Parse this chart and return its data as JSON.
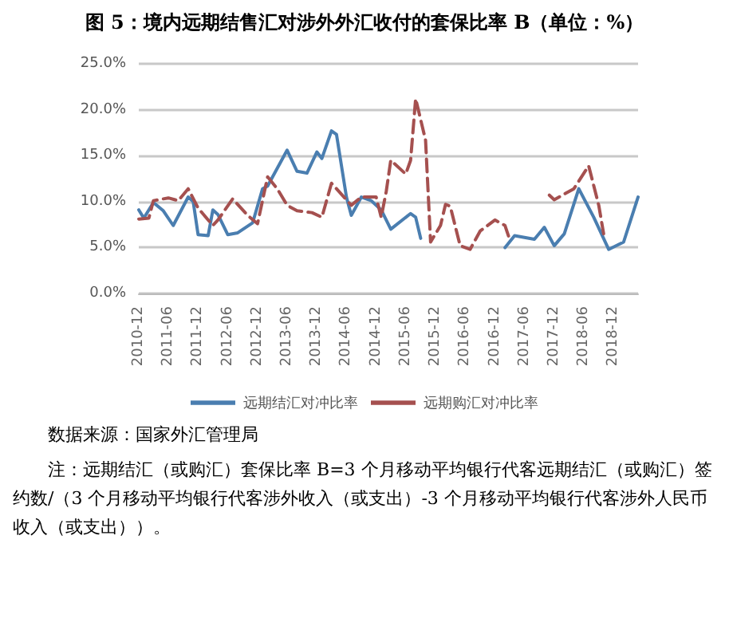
{
  "chart_data": {
    "type": "line",
    "title": "图 5：境内远期结售汇对涉外外汇收付的套保比率 B（单位：%）",
    "xlim": [
      "2010-12",
      "2019-05"
    ],
    "xticks": [
      {
        "value": "2010-12",
        "label": "2010-12"
      },
      {
        "value": "2011-06",
        "label": "2011-06"
      },
      {
        "value": "2011-12",
        "label": "2011-12"
      },
      {
        "value": "2012-06",
        "label": "2012-06"
      },
      {
        "value": "2012-12",
        "label": "2012-12"
      },
      {
        "value": "2013-06",
        "label": "2013-06"
      },
      {
        "value": "2013-12",
        "label": "2013-12"
      },
      {
        "value": "2014-06",
        "label": "2014-06"
      },
      {
        "value": "2014-12",
        "label": "2014-12"
      },
      {
        "value": "2015-06",
        "label": "2015-06"
      },
      {
        "value": "2015-12",
        "label": "2015-12"
      },
      {
        "value": "2016-06",
        "label": "2016-06"
      },
      {
        "value": "2016-12",
        "label": "2016-12"
      },
      {
        "value": "2017-06",
        "label": "2017-06"
      },
      {
        "value": "2017-12",
        "label": "2017-12"
      },
      {
        "value": "2018-06",
        "label": "2018-06"
      },
      {
        "value": "2018-12",
        "label": "2018-12"
      }
    ],
    "ylim": [
      0,
      25
    ],
    "yticks": [
      {
        "value": 0,
        "label": "0.0%"
      },
      {
        "value": 5,
        "label": "5.0%"
      },
      {
        "value": 10,
        "label": "10.0%"
      },
      {
        "value": 15,
        "label": "15.0%"
      },
      {
        "value": 20,
        "label": "20.0%"
      },
      {
        "value": 25,
        "label": "25.0%"
      }
    ],
    "grid": "y",
    "legend": "bottom",
    "marker": "none",
    "series": [
      {
        "name": "远期结汇对冲比率",
        "color": "#4a7eb0",
        "line_style": "solid",
        "x": [
          "2010-12",
          "2011-01",
          "2011-03",
          "2011-05",
          "2011-07",
          "2011-10",
          "2011-11",
          "2011-12",
          "2012-02",
          "2012-03",
          "2012-04",
          "2012-06",
          "2012-08",
          "2012-11",
          "2013-01",
          "2013-02",
          "2013-06",
          "2013-08",
          "2013-10",
          "2013-12",
          "2014-01",
          "2014-03",
          "2014-04",
          "2014-06",
          "2014-07",
          "2014-09",
          "2014-11",
          "2015-01",
          "2015-03",
          "2015-07",
          "2015-08",
          "2015-09",
          "2016-05",
          "2017-02",
          "2017-04",
          "2017-08",
          "2017-10",
          "2017-12",
          "2018-02",
          "2018-05",
          "2018-08",
          "2018-11",
          "2019-02",
          "2019-05"
        ],
        "values": [
          9.1,
          8.2,
          9.9,
          9.0,
          7.4,
          10.5,
          10.0,
          6.4,
          6.3,
          9.1,
          8.6,
          6.4,
          6.6,
          7.7,
          11.4,
          11.7,
          15.6,
          13.3,
          13.1,
          15.4,
          14.7,
          17.7,
          17.3,
          10.5,
          8.5,
          10.5,
          10.1,
          9.1,
          7.0,
          8.7,
          8.3,
          6.0,
          null,
          5.0,
          6.3,
          5.9,
          7.2,
          5.2,
          6.5,
          11.4,
          8.3,
          4.8,
          5.6,
          10.5
        ]
      },
      {
        "name": "远期购汇对冲比率",
        "color": "#a5504f",
        "line_style": "dashed",
        "x": [
          "2010-12",
          "2011-02",
          "2011-03",
          "2011-06",
          "2011-08",
          "2011-10",
          "2011-12",
          "2012-03",
          "2012-04",
          "2012-07",
          "2012-10",
          "2012-12",
          "2013-02",
          "2013-04",
          "2013-06",
          "2013-08",
          "2013-11",
          "2014-01",
          "2014-03",
          "2014-06",
          "2014-07",
          "2014-09",
          "2014-12",
          "2015-01",
          "2015-02",
          "2015-03",
          "2015-06",
          "2015-07",
          "2015-08",
          "2015-10",
          "2015-11",
          "2016-01",
          "2016-02",
          "2016-03",
          "2016-05",
          "2016-07",
          "2016-09",
          "2016-12",
          "2017-02",
          "2017-03",
          "2017-07",
          "2017-11",
          "2017-12",
          "2018-04",
          "2018-07",
          "2018-09",
          "2018-10"
        ],
        "values": [
          8.1,
          8.2,
          10.1,
          10.4,
          10.1,
          11.4,
          9.3,
          7.4,
          8.0,
          10.3,
          8.5,
          7.6,
          12.7,
          11.4,
          9.6,
          9.0,
          8.8,
          8.3,
          12.0,
          10.2,
          9.6,
          10.5,
          10.5,
          8.3,
          11.1,
          14.5,
          13.0,
          14.5,
          21.2,
          16.7,
          5.6,
          7.4,
          9.7,
          9.5,
          5.2,
          4.8,
          6.8,
          8.0,
          7.4,
          5.9,
          null,
          10.7,
          10.2,
          11.4,
          13.9,
          9.6,
          6.5
        ]
      }
    ],
    "annotations": [
      "数据来源：国家外汇管理局",
      "注：远期结汇（或购汇）套保比率 B=3 个月移动平均银行代客远期结汇（或购汇）签约数/（3 个月移动平均银行代客涉外收入（或支出）-3 个月移动平均银行代客涉外人民币收入（或支出））。"
    ]
  }
}
